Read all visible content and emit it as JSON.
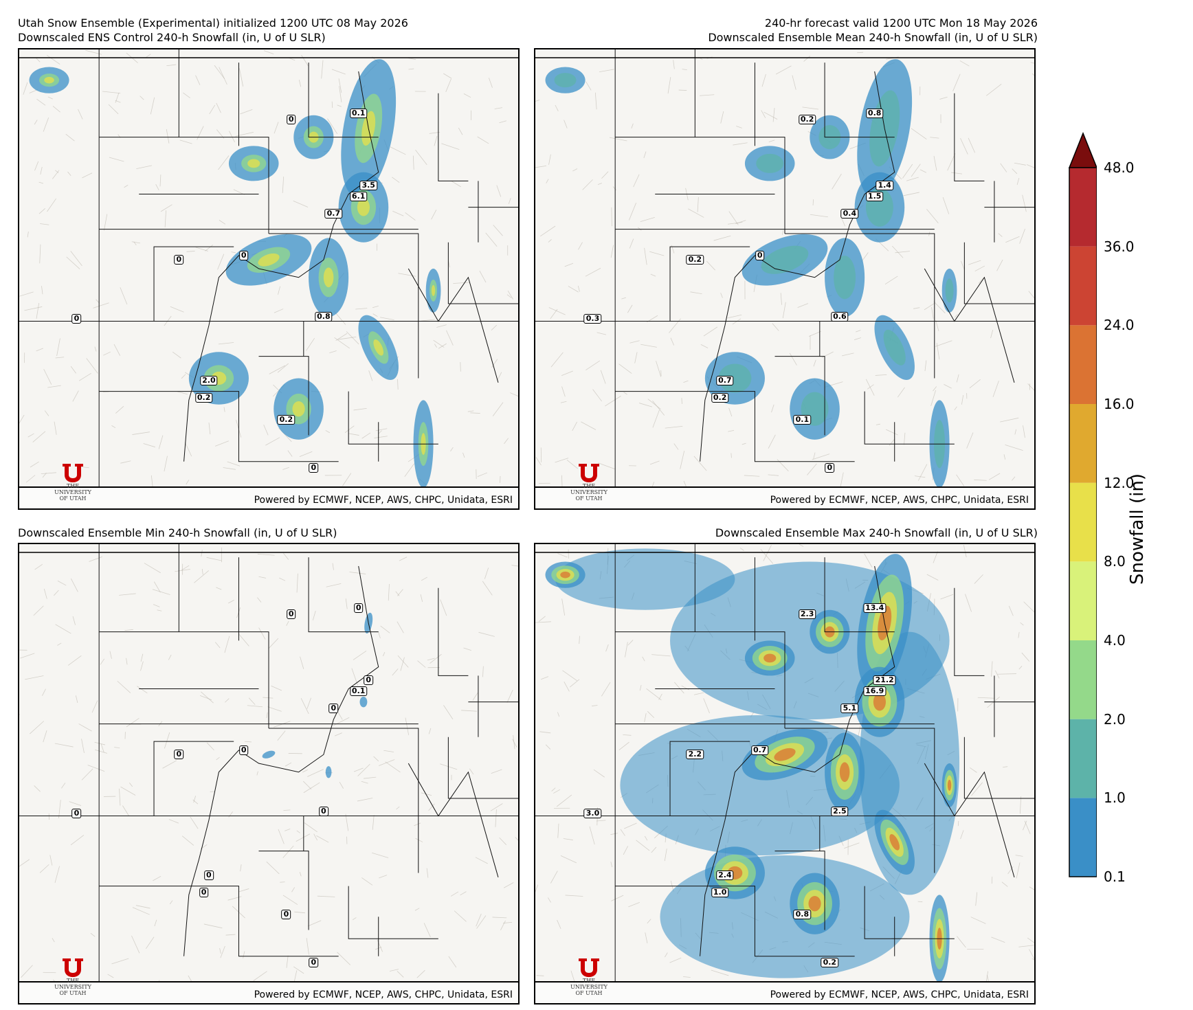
{
  "header": {
    "top_left_line1": "Utah Snow Ensemble (Experimental) initialized 1200 UTC 08 May 2026",
    "top_right_line1": "240-hr forecast valid 1200 UTC Mon 18 May 2026"
  },
  "panels": [
    {
      "id": "control",
      "title": "Downscaled ENS Control 240-h Snowfall (in, U of U SLR)",
      "title_align": "left",
      "intensity": 0.45,
      "points": [
        {
          "value": "0",
          "x": 0.545,
          "y": 0.16
        },
        {
          "value": "0.1",
          "x": 0.68,
          "y": 0.145
        },
        {
          "value": "3.5",
          "x": 0.7,
          "y": 0.31
        },
        {
          "value": "6.1",
          "x": 0.68,
          "y": 0.335
        },
        {
          "value": "0.7",
          "x": 0.63,
          "y": 0.375
        },
        {
          "value": "0",
          "x": 0.32,
          "y": 0.48
        },
        {
          "value": "0",
          "x": 0.45,
          "y": 0.47
        },
        {
          "value": "0",
          "x": 0.115,
          "y": 0.615
        },
        {
          "value": "0.8",
          "x": 0.61,
          "y": 0.61
        },
        {
          "value": "2.0",
          "x": 0.38,
          "y": 0.755
        },
        {
          "value": "0.2",
          "x": 0.37,
          "y": 0.795
        },
        {
          "value": "0.2",
          "x": 0.535,
          "y": 0.845
        },
        {
          "value": "0",
          "x": 0.59,
          "y": 0.955
        }
      ]
    },
    {
      "id": "mean",
      "title": "Downscaled Ensemble Mean 240-h Snowfall (in, U of U SLR)",
      "title_align": "right",
      "intensity": 0.55,
      "points": [
        {
          "value": "0.2",
          "x": 0.545,
          "y": 0.16
        },
        {
          "value": "0.8",
          "x": 0.68,
          "y": 0.145
        },
        {
          "value": "1.4",
          "x": 0.7,
          "y": 0.31
        },
        {
          "value": "1.5",
          "x": 0.68,
          "y": 0.335
        },
        {
          "value": "0.4",
          "x": 0.63,
          "y": 0.375
        },
        {
          "value": "0.2",
          "x": 0.32,
          "y": 0.48
        },
        {
          "value": "0",
          "x": 0.45,
          "y": 0.47
        },
        {
          "value": "0.3",
          "x": 0.115,
          "y": 0.615
        },
        {
          "value": "0.6",
          "x": 0.61,
          "y": 0.61
        },
        {
          "value": "0.7",
          "x": 0.38,
          "y": 0.755
        },
        {
          "value": "0.2",
          "x": 0.37,
          "y": 0.795
        },
        {
          "value": "0.1",
          "x": 0.535,
          "y": 0.845
        },
        {
          "value": "0",
          "x": 0.59,
          "y": 0.955
        }
      ]
    },
    {
      "id": "min",
      "title": "Downscaled Ensemble Min 240-h Snowfall (in, U of U SLR)",
      "title_align": "left",
      "intensity": 0.15,
      "points": [
        {
          "value": "0",
          "x": 0.545,
          "y": 0.16
        },
        {
          "value": "0",
          "x": 0.68,
          "y": 0.145
        },
        {
          "value": "0",
          "x": 0.7,
          "y": 0.31
        },
        {
          "value": "0.1",
          "x": 0.68,
          "y": 0.335
        },
        {
          "value": "0",
          "x": 0.63,
          "y": 0.375
        },
        {
          "value": "0",
          "x": 0.32,
          "y": 0.48
        },
        {
          "value": "0",
          "x": 0.45,
          "y": 0.47
        },
        {
          "value": "0",
          "x": 0.115,
          "y": 0.615
        },
        {
          "value": "0",
          "x": 0.61,
          "y": 0.61
        },
        {
          "value": "0",
          "x": 0.38,
          "y": 0.755
        },
        {
          "value": "0",
          "x": 0.37,
          "y": 0.795
        },
        {
          "value": "0",
          "x": 0.535,
          "y": 0.845
        },
        {
          "value": "0",
          "x": 0.59,
          "y": 0.955
        }
      ]
    },
    {
      "id": "max",
      "title": "Downscaled Ensemble Max 240-h Snowfall (in, U of U SLR)",
      "title_align": "right",
      "intensity": 1.0,
      "points": [
        {
          "value": "2.3",
          "x": 0.545,
          "y": 0.16
        },
        {
          "value": "13.4",
          "x": 0.68,
          "y": 0.145
        },
        {
          "value": "21.2",
          "x": 0.7,
          "y": 0.31
        },
        {
          "value": "16.9",
          "x": 0.68,
          "y": 0.335
        },
        {
          "value": "5.1",
          "x": 0.63,
          "y": 0.375
        },
        {
          "value": "2.2",
          "x": 0.32,
          "y": 0.48
        },
        {
          "value": "0.7",
          "x": 0.45,
          "y": 0.47
        },
        {
          "value": "3.0",
          "x": 0.115,
          "y": 0.615
        },
        {
          "value": "2.5",
          "x": 0.61,
          "y": 0.61
        },
        {
          "value": "2.4",
          "x": 0.38,
          "y": 0.755
        },
        {
          "value": "1.0",
          "x": 0.37,
          "y": 0.795
        },
        {
          "value": "0.8",
          "x": 0.535,
          "y": 0.845
        },
        {
          "value": "0.2",
          "x": 0.59,
          "y": 0.955
        }
      ]
    }
  ],
  "credit": "Powered by ECMWF, NCEP, AWS, CHPC, Unidata, ESRI",
  "logo": {
    "line1": "THE",
    "line2": "UNIVERSITY",
    "line3": "OF UTAH"
  },
  "colorbar": {
    "label": "Snowfall (in)",
    "ticks": [
      "0.1",
      "1.0",
      "2.0",
      "4.0",
      "8.0",
      "12.0",
      "16.0",
      "24.0",
      "36.0",
      "48.0"
    ],
    "colors": [
      "#3a8fc7",
      "#5db3a9",
      "#94d98a",
      "#d9f27a",
      "#e8e04a",
      "#e0a92f",
      "#db7333",
      "#cc4433",
      "#b52a2f"
    ],
    "extend_color": "#7a0d0d"
  }
}
